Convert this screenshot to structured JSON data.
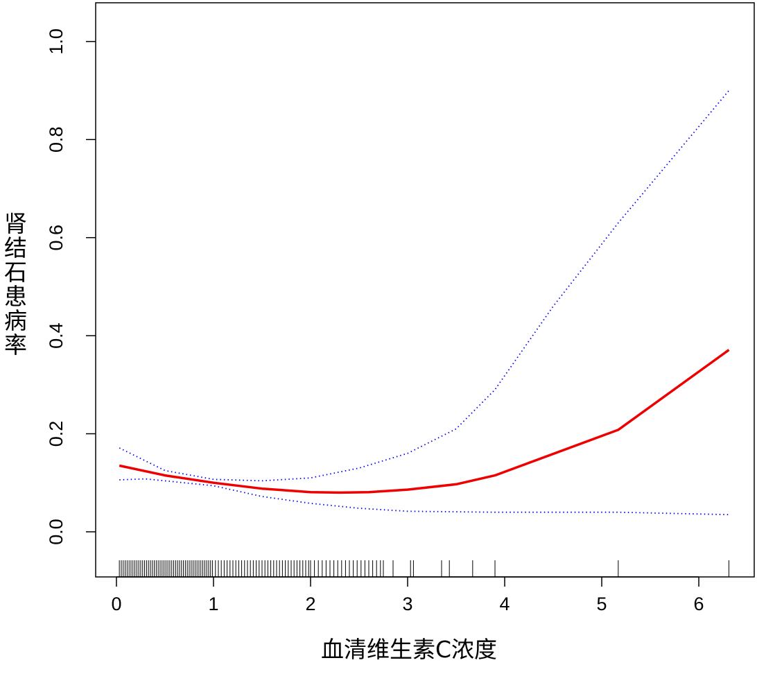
{
  "chart_data": {
    "type": "line",
    "xlabel": "血清维生素C浓度",
    "ylabel": "肾结石患病率",
    "xlim": [
      -0.214,
      6.571
    ],
    "ylim": [
      -0.092,
      1.079
    ],
    "xticks": [
      0,
      1,
      2,
      3,
      4,
      5,
      6
    ],
    "yticks": [
      {
        "value": 0,
        "label": "0.0"
      },
      0.2,
      0.4,
      0.6,
      0.8,
      {
        "value": 1,
        "label": "1.0"
      }
    ],
    "series": [
      {
        "color": "#ee0000",
        "linestyle": "solid",
        "x": [
          0.03,
          0.5,
          1.0,
          1.5,
          2.0,
          2.3,
          2.6,
          3.0,
          3.5,
          3.9,
          5.17,
          6.31
        ],
        "values": [
          0.135,
          0.115,
          0.1,
          0.088,
          0.081,
          0.08,
          0.081,
          0.086,
          0.097,
          0.115,
          0.208,
          0.371
        ]
      },
      {
        "color": "#0000ee",
        "linestyle": "dotted",
        "x": [
          0.03,
          0.5,
          1.0,
          1.5,
          2.0,
          2.5,
          3.0,
          3.5,
          3.9,
          4.5,
          5.17,
          6.31
        ],
        "values": [
          0.171,
          0.125,
          0.107,
          0.104,
          0.11,
          0.13,
          0.16,
          0.21,
          0.29,
          0.46,
          0.63,
          0.9
        ]
      },
      {
        "color": "#0000ee",
        "linestyle": "dotted",
        "x": [
          0.03,
          0.3,
          1.0,
          1.5,
          2.0,
          2.5,
          3.0,
          3.9,
          5.17,
          6.31
        ],
        "values": [
          0.106,
          0.108,
          0.094,
          0.072,
          0.058,
          0.048,
          0.042,
          0.04,
          0.04,
          0.035
        ]
      }
    ],
    "rug": [
      0.03,
      0.05,
      0.07,
      0.09,
      0.11,
      0.13,
      0.15,
      0.17,
      0.19,
      0.21,
      0.23,
      0.25,
      0.27,
      0.29,
      0.31,
      0.33,
      0.35,
      0.37,
      0.39,
      0.41,
      0.43,
      0.45,
      0.47,
      0.49,
      0.51,
      0.53,
      0.55,
      0.57,
      0.59,
      0.61,
      0.63,
      0.65,
      0.67,
      0.69,
      0.71,
      0.73,
      0.75,
      0.77,
      0.79,
      0.81,
      0.83,
      0.85,
      0.87,
      0.89,
      0.91,
      0.93,
      0.95,
      0.97,
      0.99,
      1.02,
      1.05,
      1.08,
      1.11,
      1.14,
      1.17,
      1.2,
      1.23,
      1.26,
      1.29,
      1.32,
      1.35,
      1.38,
      1.41,
      1.44,
      1.47,
      1.5,
      1.53,
      1.56,
      1.59,
      1.62,
      1.65,
      1.68,
      1.71,
      1.74,
      1.77,
      1.8,
      1.83,
      1.86,
      1.89,
      1.92,
      1.95,
      1.98,
      2.0,
      2.04,
      2.08,
      2.12,
      2.16,
      2.2,
      2.24,
      2.28,
      2.32,
      2.36,
      2.4,
      2.44,
      2.48,
      2.52,
      2.56,
      2.6,
      2.64,
      2.68,
      2.72,
      2.75,
      2.85,
      3.03,
      3.06,
      3.35,
      3.43,
      3.67,
      3.9,
      5.17,
      6.31
    ]
  }
}
